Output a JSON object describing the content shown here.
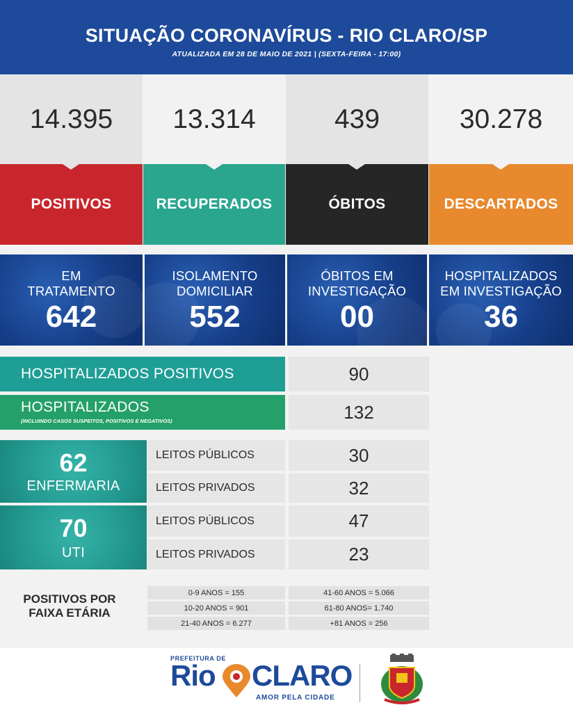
{
  "header": {
    "title": "SITUAÇÃO CORONAVÍRUS - RIO CLARO/SP",
    "subtitle": "ATUALIZADA EM 28 DE MAIO DE 2021 | (SEXTA-FEIRA - 17:00)"
  },
  "stats": [
    {
      "value": "14.395",
      "label": "POSITIVOS",
      "color": "#c8262c"
    },
    {
      "value": "13.314",
      "label": "RECUPERADOS",
      "color": "#2aa68e"
    },
    {
      "value": "439",
      "label": "ÓBITOS",
      "color": "#262626"
    },
    {
      "value": "30.278",
      "label": "DESCARTADOS",
      "color": "#e8892e"
    }
  ],
  "secondary": [
    {
      "label_line1": "EM",
      "label_line2": "TRATAMENTO",
      "value": "642"
    },
    {
      "label_line1": "ISOLAMENTO",
      "label_line2": "DOMICILIAR",
      "value": "552"
    },
    {
      "label_line1": "ÓBITOS EM",
      "label_line2": "INVESTIGAÇÃO",
      "value": "00"
    },
    {
      "label_line1": "HOSPITALIZADOS",
      "label_line2": "EM INVESTIGAÇÃO",
      "value": "36"
    }
  ],
  "hospitalized": {
    "positive_label": "HOSPITALIZADOS POSITIVOS",
    "positive_value": "90",
    "total_label": "HOSPITALIZADOS",
    "total_note": "(INCLUINDO CASOS SUSPEITOS, POSITIVOS E NEGATIVOS)",
    "total_value": "132"
  },
  "beds": {
    "enfermaria": {
      "count": "62",
      "label": "ENFERMARIA",
      "public_label": "LEITOS PÚBLICOS",
      "public_value": "30",
      "private_label": "LEITOS PRIVADOS",
      "private_value": "32"
    },
    "uti": {
      "count": "70",
      "label": "UTI",
      "public_label": "LEITOS PÚBLICOS",
      "public_value": "47",
      "private_label": "LEITOS PRIVADOS",
      "private_value": "23"
    }
  },
  "age": {
    "title_line1": "POSITIVOS POR",
    "title_line2": "FAIXA ETÁRIA",
    "left": [
      "0-9 ANOS = 155",
      "10-20 ANOS = 901",
      "21-40 ANOS = 6.277"
    ],
    "right": [
      "41-60 ANOS = 5.066",
      "61-80 ANOS= 1.740",
      "+81 ANOS = 256"
    ]
  },
  "footer": {
    "prefeitura": "PREFEITURA DE",
    "rio": "Rio",
    "claro": "CLARO",
    "slogan": "AMOR PELA CIDADE"
  },
  "colors": {
    "header_blue": "#1d4a9a",
    "teal_dark": "#1f9e96",
    "green": "#24a06a"
  }
}
